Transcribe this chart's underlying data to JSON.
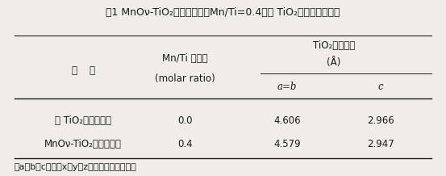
{
  "title": "表1 MnOν-TiO₂复合氧化物（Mn/Ti=0.4）中 TiO₂晶格的晶胞参数",
  "col_header_1": "名    称",
  "col_header_2_line1": "Mn/Ti 摩尔比",
  "col_header_2_line2": "(molar ratio)",
  "col_header_3": "TiO₂晶胞参数",
  "col_header_3_unit": "(Å)",
  "col_header_3a": "a=b",
  "col_header_3c": "c",
  "rows": [
    {
      "name": "纯 TiO₂（金红石）",
      "ratio": "0.0",
      "ab": "4.606",
      "c": "2.966"
    },
    {
      "name": "MnOν-TiO₂复合氧化物",
      "ratio": "0.4",
      "ab": "4.579",
      "c": "2.947"
    }
  ],
  "footnote": "（a、b、c为晶胞x、y、z三个方向上的边长）",
  "bg_color": "#f0ede8",
  "text_color": "#1a1a1a",
  "font_size": 8.5,
  "title_font_size": 9.0
}
